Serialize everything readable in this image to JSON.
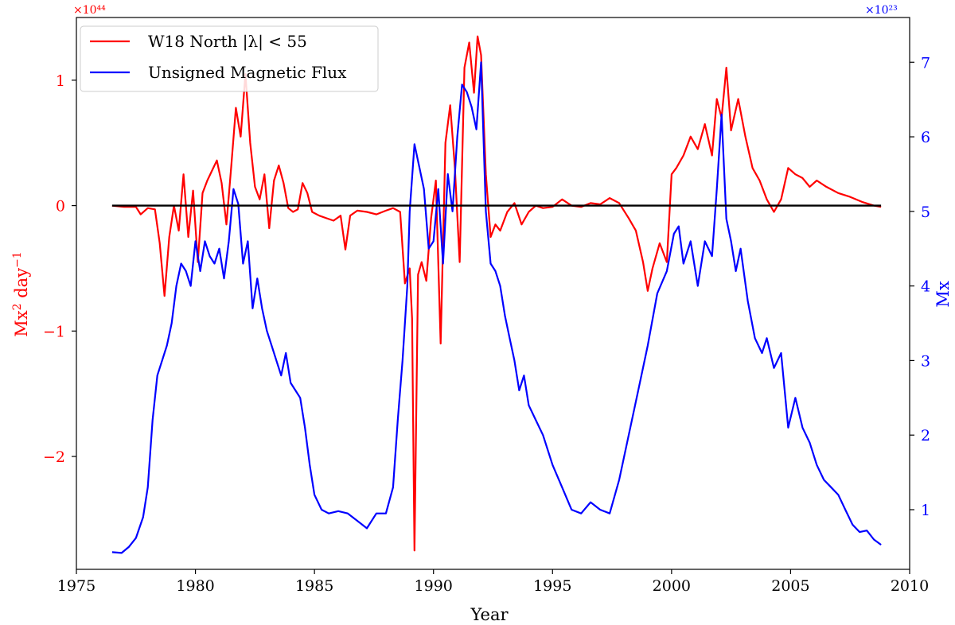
{
  "chart_data": {
    "type": "line",
    "title": "",
    "xlabel": "Year",
    "xlim": [
      1975,
      2010
    ],
    "x_ticks": [
      1975,
      1980,
      1985,
      1990,
      1995,
      2000,
      2005,
      2010
    ],
    "left_axis": {
      "ylabel": "Mx$^2$ day$^{-1}$",
      "ylabel_main": "Mx",
      "ylabel_sup1": "2",
      "ylabel_day": " day",
      "ylabel_sup2": "−1",
      "offset_label": "×10⁴⁴",
      "ylim": [
        -2.9,
        1.5
      ],
      "ticks": [
        -2,
        -1,
        0,
        1
      ],
      "tick_labels": [
        "−2",
        "−1",
        "0",
        "1"
      ],
      "color": "#ff0000"
    },
    "right_axis": {
      "ylabel": "Mx",
      "offset_label": "×10²³",
      "ylim": [
        0.2,
        7.6
      ],
      "ticks": [
        1,
        2,
        3,
        4,
        5,
        6,
        7
      ],
      "tick_labels": [
        "1",
        "2",
        "3",
        "4",
        "5",
        "6",
        "7"
      ],
      "color": "#0000ff"
    },
    "grid": false,
    "legend_position": "top-left",
    "series": [
      {
        "name": "W18 North |λ| < 55",
        "axis": "left",
        "color": "#ff0000",
        "points": [
          [
            1976.5,
            0
          ],
          [
            1977.0,
            -0.01
          ],
          [
            1977.5,
            -0.01
          ],
          [
            1977.7,
            -0.07
          ],
          [
            1978.0,
            -0.02
          ],
          [
            1978.3,
            -0.03
          ],
          [
            1978.5,
            -0.3
          ],
          [
            1978.7,
            -0.72
          ],
          [
            1978.9,
            -0.25
          ],
          [
            1979.1,
            0.0
          ],
          [
            1979.3,
            -0.2
          ],
          [
            1979.5,
            0.25
          ],
          [
            1979.7,
            -0.25
          ],
          [
            1979.9,
            0.12
          ],
          [
            1980.1,
            -0.45
          ],
          [
            1980.3,
            0.1
          ],
          [
            1980.5,
            0.2
          ],
          [
            1980.7,
            0.28
          ],
          [
            1980.9,
            0.36
          ],
          [
            1981.1,
            0.18
          ],
          [
            1981.3,
            -0.15
          ],
          [
            1981.5,
            0.3
          ],
          [
            1981.7,
            0.78
          ],
          [
            1981.9,
            0.55
          ],
          [
            1982.1,
            1.05
          ],
          [
            1982.3,
            0.5
          ],
          [
            1982.5,
            0.15
          ],
          [
            1982.7,
            0.05
          ],
          [
            1982.9,
            0.25
          ],
          [
            1983.1,
            -0.18
          ],
          [
            1983.3,
            0.2
          ],
          [
            1983.5,
            0.32
          ],
          [
            1983.7,
            0.18
          ],
          [
            1983.9,
            -0.02
          ],
          [
            1984.1,
            -0.05
          ],
          [
            1984.3,
            -0.03
          ],
          [
            1984.5,
            0.18
          ],
          [
            1984.7,
            0.1
          ],
          [
            1984.9,
            -0.05
          ],
          [
            1985.2,
            -0.08
          ],
          [
            1985.5,
            -0.1
          ],
          [
            1985.8,
            -0.12
          ],
          [
            1986.1,
            -0.08
          ],
          [
            1986.3,
            -0.35
          ],
          [
            1986.5,
            -0.08
          ],
          [
            1986.8,
            -0.04
          ],
          [
            1987.2,
            -0.05
          ],
          [
            1987.6,
            -0.07
          ],
          [
            1988.0,
            -0.04
          ],
          [
            1988.3,
            -0.02
          ],
          [
            1988.6,
            -0.05
          ],
          [
            1988.8,
            -0.62
          ],
          [
            1989.0,
            -0.5
          ],
          [
            1989.1,
            -0.9
          ],
          [
            1989.2,
            -2.75
          ],
          [
            1989.35,
            -0.55
          ],
          [
            1989.5,
            -0.45
          ],
          [
            1989.7,
            -0.6
          ],
          [
            1989.9,
            -0.1
          ],
          [
            1990.1,
            0.2
          ],
          [
            1990.3,
            -1.1
          ],
          [
            1990.5,
            0.5
          ],
          [
            1990.7,
            0.8
          ],
          [
            1990.9,
            0.3
          ],
          [
            1991.1,
            -0.45
          ],
          [
            1991.3,
            1.1
          ],
          [
            1991.5,
            1.3
          ],
          [
            1991.7,
            0.9
          ],
          [
            1991.85,
            1.35
          ],
          [
            1992.0,
            1.2
          ],
          [
            1992.2,
            0.25
          ],
          [
            1992.4,
            -0.25
          ],
          [
            1992.6,
            -0.15
          ],
          [
            1992.8,
            -0.2
          ],
          [
            1993.1,
            -0.05
          ],
          [
            1993.4,
            0.02
          ],
          [
            1993.7,
            -0.15
          ],
          [
            1994.0,
            -0.05
          ],
          [
            1994.3,
            0.0
          ],
          [
            1994.6,
            -0.02
          ],
          [
            1995.0,
            -0.01
          ],
          [
            1995.4,
            0.05
          ],
          [
            1995.8,
            0.0
          ],
          [
            1996.2,
            -0.01
          ],
          [
            1996.6,
            0.02
          ],
          [
            1997.0,
            0.01
          ],
          [
            1997.4,
            0.06
          ],
          [
            1997.8,
            0.02
          ],
          [
            1998.2,
            -0.1
          ],
          [
            1998.5,
            -0.2
          ],
          [
            1998.8,
            -0.45
          ],
          [
            1999.0,
            -0.68
          ],
          [
            1999.2,
            -0.5
          ],
          [
            1999.5,
            -0.3
          ],
          [
            1999.8,
            -0.45
          ],
          [
            2000.0,
            0.25
          ],
          [
            2000.2,
            0.3
          ],
          [
            2000.5,
            0.4
          ],
          [
            2000.8,
            0.55
          ],
          [
            2001.1,
            0.45
          ],
          [
            2001.4,
            0.65
          ],
          [
            2001.7,
            0.4
          ],
          [
            2001.9,
            0.85
          ],
          [
            2002.1,
            0.7
          ],
          [
            2002.3,
            1.1
          ],
          [
            2002.5,
            0.6
          ],
          [
            2002.8,
            0.85
          ],
          [
            2003.1,
            0.55
          ],
          [
            2003.4,
            0.3
          ],
          [
            2003.7,
            0.2
          ],
          [
            2004.0,
            0.05
          ],
          [
            2004.3,
            -0.05
          ],
          [
            2004.6,
            0.05
          ],
          [
            2004.9,
            0.3
          ],
          [
            2005.2,
            0.25
          ],
          [
            2005.5,
            0.22
          ],
          [
            2005.8,
            0.15
          ],
          [
            2006.1,
            0.2
          ],
          [
            2006.5,
            0.15
          ],
          [
            2007.0,
            0.1
          ],
          [
            2007.5,
            0.07
          ],
          [
            2008.0,
            0.03
          ],
          [
            2008.5,
            0.0
          ],
          [
            2008.8,
            -0.01
          ]
        ]
      },
      {
        "name": "Unsigned Magnetic Flux",
        "axis": "right",
        "color": "#0000ff",
        "points": [
          [
            1976.5,
            0.43
          ],
          [
            1976.9,
            0.42
          ],
          [
            1977.2,
            0.5
          ],
          [
            1977.5,
            0.62
          ],
          [
            1977.8,
            0.9
          ],
          [
            1978.0,
            1.3
          ],
          [
            1978.2,
            2.2
          ],
          [
            1978.4,
            2.8
          ],
          [
            1978.6,
            3.0
          ],
          [
            1978.8,
            3.2
          ],
          [
            1979.0,
            3.5
          ],
          [
            1979.2,
            4.0
          ],
          [
            1979.4,
            4.3
          ],
          [
            1979.6,
            4.2
          ],
          [
            1979.8,
            4.0
          ],
          [
            1980.0,
            4.6
          ],
          [
            1980.2,
            4.2
          ],
          [
            1980.4,
            4.6
          ],
          [
            1980.6,
            4.4
          ],
          [
            1980.8,
            4.3
          ],
          [
            1981.0,
            4.5
          ],
          [
            1981.2,
            4.1
          ],
          [
            1981.4,
            4.6
          ],
          [
            1981.6,
            5.3
          ],
          [
            1981.8,
            5.1
          ],
          [
            1982.0,
            4.3
          ],
          [
            1982.2,
            4.6
          ],
          [
            1982.4,
            3.7
          ],
          [
            1982.6,
            4.1
          ],
          [
            1982.8,
            3.7
          ],
          [
            1983.0,
            3.4
          ],
          [
            1983.2,
            3.2
          ],
          [
            1983.4,
            3.0
          ],
          [
            1983.6,
            2.8
          ],
          [
            1983.8,
            3.1
          ],
          [
            1984.0,
            2.7
          ],
          [
            1984.2,
            2.6
          ],
          [
            1984.4,
            2.5
          ],
          [
            1984.6,
            2.1
          ],
          [
            1984.8,
            1.6
          ],
          [
            1985.0,
            1.2
          ],
          [
            1985.3,
            1.0
          ],
          [
            1985.6,
            0.95
          ],
          [
            1986.0,
            0.98
          ],
          [
            1986.4,
            0.95
          ],
          [
            1986.8,
            0.85
          ],
          [
            1987.2,
            0.75
          ],
          [
            1987.6,
            0.95
          ],
          [
            1988.0,
            0.95
          ],
          [
            1988.3,
            1.3
          ],
          [
            1988.5,
            2.2
          ],
          [
            1988.7,
            3.0
          ],
          [
            1988.9,
            4.0
          ],
          [
            1989.0,
            5.0
          ],
          [
            1989.2,
            5.9
          ],
          [
            1989.4,
            5.6
          ],
          [
            1989.6,
            5.3
          ],
          [
            1989.8,
            4.5
          ],
          [
            1990.0,
            4.6
          ],
          [
            1990.2,
            5.3
          ],
          [
            1990.4,
            4.3
          ],
          [
            1990.6,
            5.5
          ],
          [
            1990.8,
            5.0
          ],
          [
            1991.0,
            6.0
          ],
          [
            1991.2,
            6.7
          ],
          [
            1991.4,
            6.6
          ],
          [
            1991.6,
            6.4
          ],
          [
            1991.8,
            6.1
          ],
          [
            1992.0,
            7.0
          ],
          [
            1992.2,
            5.0
          ],
          [
            1992.4,
            4.3
          ],
          [
            1992.6,
            4.2
          ],
          [
            1992.8,
            4.0
          ],
          [
            1993.0,
            3.6
          ],
          [
            1993.2,
            3.3
          ],
          [
            1993.4,
            3.0
          ],
          [
            1993.6,
            2.6
          ],
          [
            1993.8,
            2.8
          ],
          [
            1994.0,
            2.4
          ],
          [
            1994.3,
            2.2
          ],
          [
            1994.6,
            2.0
          ],
          [
            1995.0,
            1.6
          ],
          [
            1995.4,
            1.3
          ],
          [
            1995.8,
            1.0
          ],
          [
            1996.2,
            0.95
          ],
          [
            1996.6,
            1.1
          ],
          [
            1997.0,
            1.0
          ],
          [
            1997.4,
            0.95
          ],
          [
            1997.8,
            1.4
          ],
          [
            1998.2,
            2.0
          ],
          [
            1998.6,
            2.6
          ],
          [
            1999.0,
            3.2
          ],
          [
            1999.4,
            3.9
          ],
          [
            1999.8,
            4.2
          ],
          [
            2000.1,
            4.7
          ],
          [
            2000.3,
            4.8
          ],
          [
            2000.5,
            4.3
          ],
          [
            2000.8,
            4.6
          ],
          [
            2001.1,
            4.0
          ],
          [
            2001.4,
            4.6
          ],
          [
            2001.7,
            4.4
          ],
          [
            2001.9,
            5.3
          ],
          [
            2002.1,
            6.3
          ],
          [
            2002.3,
            4.9
          ],
          [
            2002.5,
            4.6
          ],
          [
            2002.7,
            4.2
          ],
          [
            2002.9,
            4.5
          ],
          [
            2003.2,
            3.8
          ],
          [
            2003.5,
            3.3
          ],
          [
            2003.8,
            3.1
          ],
          [
            2004.0,
            3.3
          ],
          [
            2004.3,
            2.9
          ],
          [
            2004.6,
            3.1
          ],
          [
            2004.9,
            2.1
          ],
          [
            2005.2,
            2.5
          ],
          [
            2005.5,
            2.1
          ],
          [
            2005.8,
            1.9
          ],
          [
            2006.1,
            1.6
          ],
          [
            2006.4,
            1.4
          ],
          [
            2006.7,
            1.3
          ],
          [
            2007.0,
            1.2
          ],
          [
            2007.3,
            1.0
          ],
          [
            2007.6,
            0.8
          ],
          [
            2007.9,
            0.7
          ],
          [
            2008.2,
            0.72
          ],
          [
            2008.5,
            0.6
          ],
          [
            2008.8,
            0.53
          ]
        ]
      }
    ],
    "reference_line": {
      "axis": "left",
      "y": 0,
      "x_range": [
        1976.5,
        2008.8
      ],
      "color": "#000000"
    }
  }
}
